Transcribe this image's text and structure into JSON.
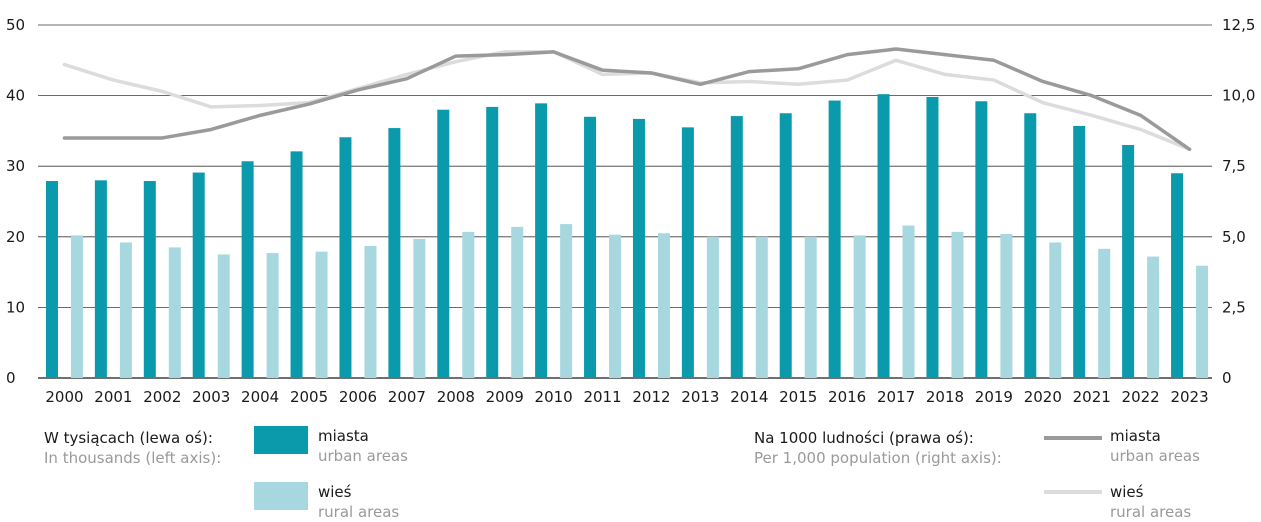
{
  "chart_data": {
    "type": "bar+line",
    "categories": [
      "2000",
      "2001",
      "2002",
      "2003",
      "2004",
      "2005",
      "2006",
      "2007",
      "2008",
      "2009",
      "2010",
      "2011",
      "2012",
      "2013",
      "2014",
      "2015",
      "2016",
      "2017",
      "2018",
      "2019",
      "2020",
      "2021",
      "2022",
      "2023"
    ],
    "left_axis": {
      "ylim": [
        0,
        50
      ],
      "ticks": [
        "0",
        "10",
        "20",
        "30",
        "40",
        "50"
      ]
    },
    "right_axis": {
      "ylim": [
        0,
        12.5
      ],
      "ticks": [
        "0",
        "2,5",
        "5,0",
        "7,5",
        "10,0",
        "12,5"
      ]
    },
    "bar_series": [
      {
        "name": "miasta",
        "color": "#0a9aab",
        "values": [
          27.9,
          28.0,
          27.9,
          29.1,
          30.7,
          32.1,
          34.1,
          35.4,
          38.0,
          38.4,
          38.9,
          37.0,
          36.7,
          35.5,
          37.1,
          37.5,
          39.3,
          40.2,
          39.8,
          39.2,
          37.5,
          35.7,
          33.0,
          29.0
        ]
      },
      {
        "name": "wieś",
        "color": "#a7d8e0",
        "values": [
          20.2,
          19.2,
          18.5,
          17.5,
          17.7,
          17.9,
          18.7,
          19.7,
          20.7,
          21.4,
          21.8,
          20.3,
          20.5,
          20.0,
          20.0,
          20.0,
          20.2,
          21.6,
          20.7,
          20.4,
          19.2,
          18.3,
          17.2,
          15.9
        ]
      }
    ],
    "line_series": [
      {
        "name": "miasta",
        "color": "#9a9a9a",
        "values": [
          8.5,
          8.5,
          8.5,
          8.8,
          9.3,
          9.7,
          10.2,
          10.6,
          11.4,
          11.45,
          11.55,
          10.9,
          10.8,
          10.4,
          10.85,
          10.95,
          11.45,
          11.65,
          11.45,
          11.25,
          10.5,
          10.0,
          9.3,
          8.1
        ]
      },
      {
        "name": "wieś",
        "color": "#dcdcdc",
        "values": [
          11.1,
          10.55,
          10.15,
          9.6,
          9.65,
          9.75,
          10.25,
          10.75,
          11.2,
          11.55,
          11.55,
          10.75,
          10.8,
          10.45,
          10.5,
          10.4,
          10.55,
          11.25,
          10.75,
          10.55,
          9.75,
          9.3,
          8.8,
          8.1
        ]
      }
    ]
  },
  "legend": {
    "left_title_pl": "W tysiącach (lewa oś):",
    "left_title_en": "In thousands (left axis):",
    "right_title_pl": "Na 1000 ludności (prawa oś):",
    "right_title_en": "Per 1,000 population (right axis):",
    "urban_pl": "miasta",
    "urban_en": "urban areas",
    "rural_pl": "wieś",
    "rural_en": "rural areas"
  }
}
